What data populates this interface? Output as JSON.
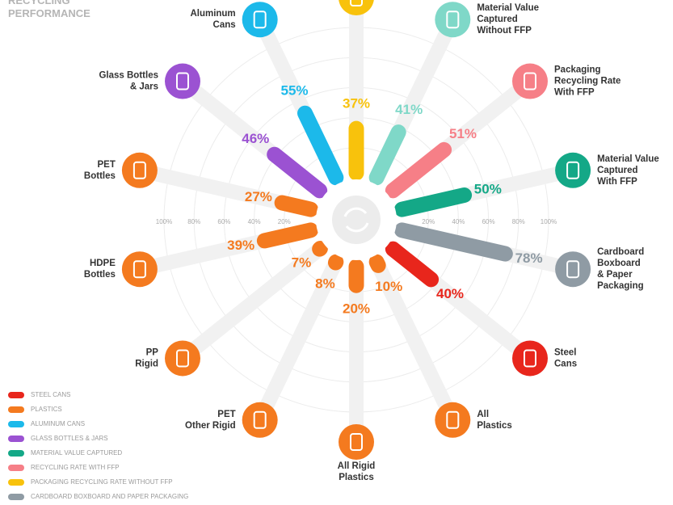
{
  "chart_data": {
    "type": "radial_bar",
    "title": "RECYCLING PERFORMANCE",
    "categories": [
      null,
      "Material Value\nCaptured\nWithout FFP",
      "Packaging\nRecycling Rate\nWith FFP",
      "Material Value\nCaptured\nWith FFP",
      "Cardboard\nBoxboard\n& Paper\nPackaging",
      "Steel\nCans",
      "All\nPlastics",
      "All Rigid\nPlastics",
      "PET\nOther Rigid",
      "PP\nRigid",
      "HDPE\nBottles",
      "PET\nBottles",
      "Glass Bottles\n& Jars",
      "Aluminum\nCans"
    ],
    "values": [
      37,
      41,
      51,
      50,
      78,
      40,
      10,
      20,
      8,
      7,
      39,
      27,
      46,
      55
    ],
    "value_labels": [
      "37%",
      "41%",
      "51%",
      "50%",
      "78%",
      "40%",
      "10%",
      "20%",
      "8%",
      "7%",
      "39%",
      "27%",
      "46%",
      "55%"
    ],
    "colors": [
      "#f8c20c",
      "#7fd8c8",
      "#f67f87",
      "#14a887",
      "#8f9ba4",
      "#e8261c",
      "#f47a1f",
      "#f47a1f",
      "#f47a1f",
      "#f47a1f",
      "#f47a1f",
      "#f47a1f",
      "#9b52d2",
      "#1cb9ea"
    ],
    "rlim": [
      0,
      100
    ],
    "rticks": [
      {
        "value": 20,
        "label": "20%"
      },
      {
        "value": 40,
        "label": "40%"
      },
      {
        "value": 60,
        "label": "60%"
      },
      {
        "value": 80,
        "label": "80%"
      },
      {
        "value": 100,
        "label": "100%"
      }
    ],
    "legend": [
      {
        "name": "STEEL CANS",
        "color": "#e8261c"
      },
      {
        "name": "PLASTICS",
        "color": "#f47a1f"
      },
      {
        "name": "ALUMINUM CANS",
        "color": "#1cb9ea"
      },
      {
        "name": "GLASS BOTTLES & JARS",
        "color": "#9b52d2"
      },
      {
        "name": "MATERIAL VALUE CAPTURED",
        "color": "#14a887"
      },
      {
        "name": "RECYCLING RATE WITH FFP",
        "color": "#f67f87"
      },
      {
        "name": "PACKAGING RECYCLING RATE WITHOUT FFP",
        "color": "#f8c20c"
      },
      {
        "name": "CARDBOARD BOXBOARD AND PAPER PACKAGING",
        "color": "#8f9ba4"
      }
    ]
  }
}
